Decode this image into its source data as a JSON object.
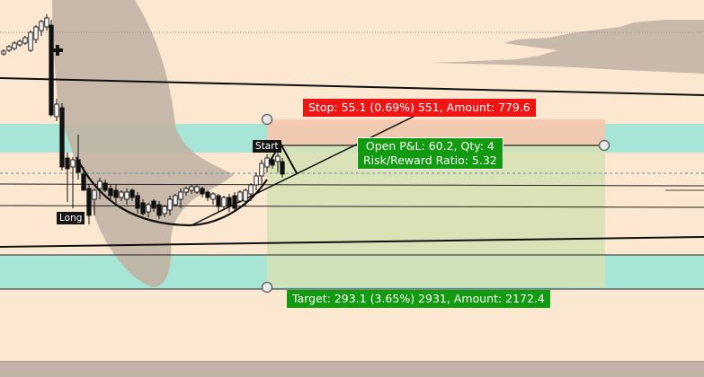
{
  "position": {
    "side_label": "Long",
    "start_label": "Start",
    "stop_label": "Stop: 55.1 (0.69%) 551, Amount: 779.6",
    "target_label": "Target: 293.1 (3.65%) 2931, Amount: 2172.4",
    "pnl_label": "Open P&L: 60.2, Qty: 4",
    "risk_reward_label": "Risk/Reward Ratio: 5.32"
  },
  "colors": {
    "background": "#fce7d1",
    "stop_zone": "#f7c6ad",
    "target_zone": "#d6e0b4",
    "support_band": "#a7e6d6",
    "volume_profile": "#c1b2a4",
    "stop_badge": "#ef1515",
    "target_badge": "#129a11",
    "candle_body": "#111111"
  },
  "icons": {
    "handle": "circle-handle-icon",
    "crosshair": "crosshair-icon"
  }
}
